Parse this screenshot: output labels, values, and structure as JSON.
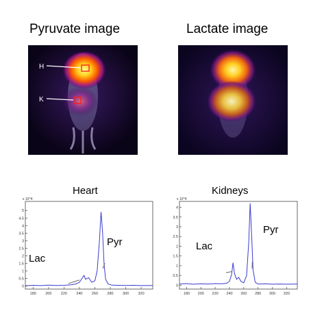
{
  "images": {
    "pyruvate": {
      "title": "Pyruvate image",
      "markers": {
        "heart": "H",
        "kidneys": "K"
      }
    },
    "lactate": {
      "title": "Lactate image"
    }
  },
  "chart_data": [
    {
      "type": "line",
      "title": "Heart",
      "x_ticks": [
        "180",
        "200",
        "220",
        "240",
        "260",
        "280",
        "300",
        "320"
      ],
      "y_ticks": [
        "0",
        "0.5",
        "1",
        "1.5",
        "2",
        "2.5",
        "3",
        "3.5",
        "4",
        "4.5",
        "5"
      ],
      "y_multiplier": "x 10^4",
      "xlim": [
        170,
        335
      ],
      "ylim": [
        -0.2,
        5.6
      ],
      "annotations": [
        {
          "text": "Lac",
          "target_x": 240,
          "target_y": 0.4
        },
        {
          "text": "Pyr",
          "target_x": 273,
          "target_y": 1.5
        }
      ],
      "series": [
        {
          "x": [
            170,
            180,
            190,
            200,
            210,
            220,
            230,
            236,
            240,
            244,
            246,
            248,
            252,
            256,
            260,
            263,
            266,
            268,
            270,
            272,
            274,
            277,
            282,
            290,
            300,
            310,
            320,
            335
          ],
          "y": [
            0.02,
            0.05,
            0.03,
            0.06,
            0.04,
            0.05,
            0.08,
            0.15,
            0.25,
            0.55,
            0.7,
            0.45,
            0.55,
            0.25,
            0.35,
            1.0,
            3.0,
            4.9,
            3.6,
            1.4,
            0.45,
            0.15,
            0.06,
            0.05,
            0.04,
            0.05,
            0.03,
            0.04
          ]
        }
      ]
    },
    {
      "type": "line",
      "title": "Kidneys",
      "x_ticks": [
        "180",
        "200",
        "220",
        "240",
        "260",
        "280",
        "300",
        "320"
      ],
      "y_ticks": [
        "0",
        "0.5",
        "1",
        "1.5",
        "2",
        "2.5",
        "3",
        "3.5",
        "4"
      ],
      "y_multiplier": "x 10^4",
      "xlim": [
        170,
        335
      ],
      "ylim": [
        -0.2,
        4.3
      ],
      "annotations": [
        {
          "text": "Lac",
          "target_x": 244,
          "target_y": 0.7
        },
        {
          "text": "Pyr",
          "target_x": 272,
          "target_y": 1.2
        }
      ],
      "series": [
        {
          "x": [
            170,
            180,
            190,
            200,
            210,
            220,
            230,
            236,
            240,
            243,
            245,
            247,
            250,
            253,
            256,
            260,
            264,
            267,
            269,
            271,
            273,
            276,
            280,
            290,
            300,
            310,
            320,
            335
          ],
          "y": [
            0.06,
            0.08,
            0.05,
            0.07,
            0.06,
            0.08,
            0.07,
            0.1,
            0.2,
            0.55,
            1.15,
            0.6,
            0.3,
            0.4,
            0.2,
            0.12,
            0.5,
            2.2,
            4.2,
            2.6,
            0.8,
            0.15,
            0.06,
            0.07,
            0.05,
            0.06,
            0.05,
            0.06
          ]
        }
      ]
    }
  ]
}
